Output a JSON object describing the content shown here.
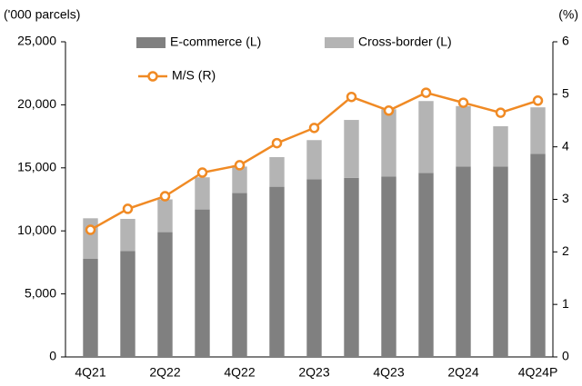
{
  "chart_data": {
    "type": "bar",
    "y_label": "('000 parcels)",
    "y2_label": "(%)",
    "categories": [
      "4Q21",
      null,
      "2Q22",
      null,
      "4Q22",
      null,
      "2Q23",
      null,
      "4Q23",
      null,
      "2Q24",
      null,
      "4Q24P"
    ],
    "stacked": true,
    "series": [
      {
        "name": "E-commerce (L)",
        "type": "bar",
        "color": "#808080",
        "values": [
          7800,
          8400,
          9900,
          11700,
          13000,
          13500,
          14100,
          14200,
          14300,
          14600,
          15100,
          15100,
          16100
        ]
      },
      {
        "name": "Cross-border (L)",
        "type": "bar",
        "color": "#b4b4b4",
        "values": [
          3200,
          2550,
          2600,
          2550,
          2100,
          2350,
          3100,
          4600,
          5350,
          5700,
          4800,
          3200,
          3700
        ]
      },
      {
        "name": "M/S (R)",
        "type": "line",
        "axis": "y2",
        "color": "#f08a24",
        "values": [
          2.42,
          2.82,
          3.06,
          3.51,
          3.65,
          4.07,
          4.36,
          4.95,
          4.69,
          5.03,
          4.84,
          4.65,
          4.88
        ]
      }
    ],
    "ylim": [
      0,
      25000
    ],
    "yticks": [
      0,
      {
        "value": 5000,
        "label": "5,000"
      },
      {
        "value": 10000,
        "label": "10,000"
      },
      {
        "value": 15000,
        "label": "15,000"
      },
      {
        "value": 20000,
        "label": "20,000"
      },
      {
        "value": 25000,
        "label": "25,000"
      }
    ],
    "y2lim": [
      0,
      6
    ],
    "y2ticks": [
      0,
      1,
      2,
      3,
      4,
      5,
      6
    ],
    "grid": false
  }
}
